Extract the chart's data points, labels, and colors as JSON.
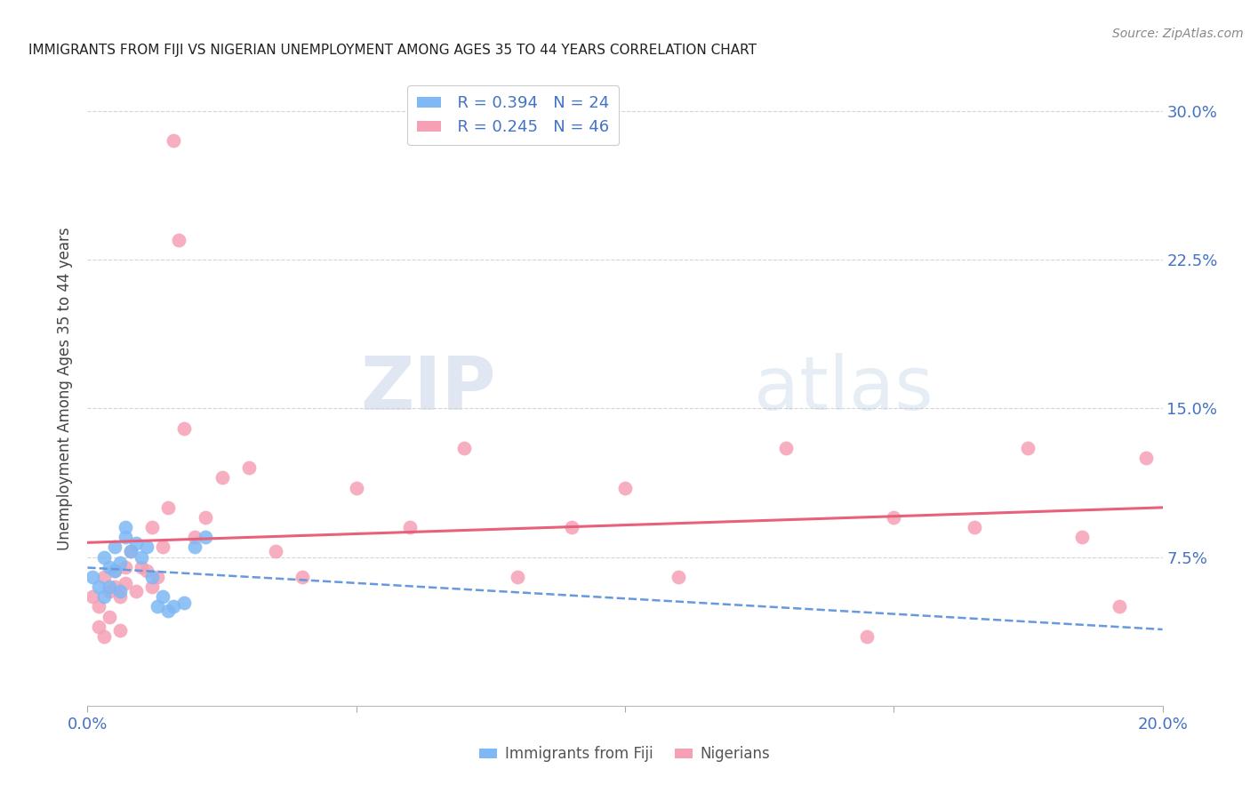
{
  "title": "IMMIGRANTS FROM FIJI VS NIGERIAN UNEMPLOYMENT AMONG AGES 35 TO 44 YEARS CORRELATION CHART",
  "source": "Source: ZipAtlas.com",
  "ylabel": "Unemployment Among Ages 35 to 44 years",
  "xlim": [
    0.0,
    0.2
  ],
  "ylim": [
    0.0,
    0.32
  ],
  "xticks": [
    0.0,
    0.05,
    0.1,
    0.15,
    0.2
  ],
  "yticks": [
    0.0,
    0.075,
    0.15,
    0.225,
    0.3
  ],
  "ytick_labels": [
    "",
    "7.5%",
    "15.0%",
    "22.5%",
    "30.0%"
  ],
  "xtick_labels": [
    "0.0%",
    "",
    "",
    "",
    "20.0%"
  ],
  "fiji_color": "#7eb8f5",
  "nigeria_color": "#f5a0b5",
  "fiji_line_color": "#6699dd",
  "nigeria_line_color": "#e8607a",
  "fiji_x": [
    0.001,
    0.002,
    0.003,
    0.003,
    0.004,
    0.004,
    0.005,
    0.005,
    0.006,
    0.006,
    0.007,
    0.007,
    0.008,
    0.009,
    0.01,
    0.011,
    0.012,
    0.013,
    0.014,
    0.015,
    0.016,
    0.018,
    0.02,
    0.022
  ],
  "fiji_y": [
    0.065,
    0.06,
    0.075,
    0.055,
    0.07,
    0.06,
    0.08,
    0.068,
    0.072,
    0.058,
    0.085,
    0.09,
    0.078,
    0.082,
    0.075,
    0.08,
    0.065,
    0.05,
    0.055,
    0.048,
    0.05,
    0.052,
    0.08,
    0.085
  ],
  "nigeria_x": [
    0.001,
    0.002,
    0.002,
    0.003,
    0.003,
    0.004,
    0.004,
    0.005,
    0.005,
    0.006,
    0.006,
    0.007,
    0.007,
    0.008,
    0.009,
    0.01,
    0.011,
    0.012,
    0.012,
    0.013,
    0.014,
    0.015,
    0.016,
    0.017,
    0.018,
    0.02,
    0.022,
    0.025,
    0.03,
    0.035,
    0.04,
    0.05,
    0.06,
    0.07,
    0.08,
    0.09,
    0.1,
    0.11,
    0.13,
    0.145,
    0.15,
    0.165,
    0.175,
    0.185,
    0.192,
    0.197
  ],
  "nigeria_y": [
    0.055,
    0.05,
    0.04,
    0.065,
    0.035,
    0.058,
    0.045,
    0.068,
    0.06,
    0.038,
    0.055,
    0.062,
    0.07,
    0.078,
    0.058,
    0.07,
    0.068,
    0.06,
    0.09,
    0.065,
    0.08,
    0.1,
    0.285,
    0.235,
    0.14,
    0.085,
    0.095,
    0.115,
    0.12,
    0.078,
    0.065,
    0.11,
    0.09,
    0.13,
    0.065,
    0.09,
    0.11,
    0.065,
    0.13,
    0.035,
    0.095,
    0.09,
    0.13,
    0.085,
    0.05,
    0.125
  ],
  "fiji_R": 0.394,
  "fiji_N": 24,
  "nigeria_R": 0.245,
  "nigeria_N": 46
}
